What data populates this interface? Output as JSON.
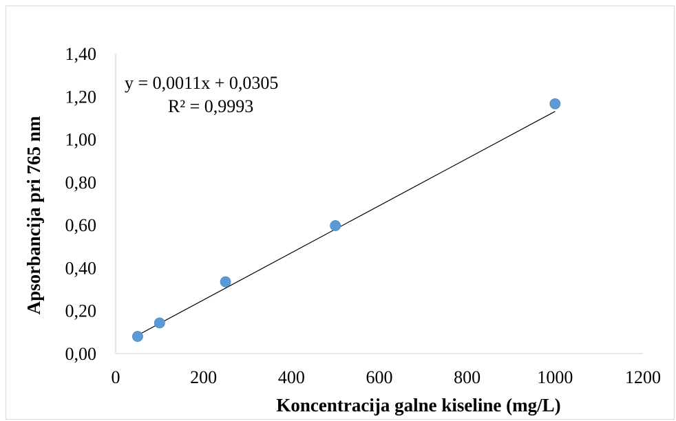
{
  "chart_data": {
    "type": "scatter",
    "title": "",
    "xlabel": "Koncentracija galne kiseline (mg/L)",
    "ylabel": "Apsorbancija pri 765 nm",
    "xlim": [
      0,
      1200
    ],
    "ylim": [
      0,
      1.4
    ],
    "x_ticks": [
      0,
      200,
      400,
      600,
      800,
      1000,
      1200
    ],
    "x_tick_labels": [
      "0",
      "200",
      "400",
      "600",
      "800",
      "1000",
      "1200"
    ],
    "y_ticks": [
      0,
      0.2,
      0.4,
      0.6,
      0.8,
      1.0,
      1.2,
      1.4
    ],
    "y_tick_labels": [
      "0,00",
      "0,20",
      "0,40",
      "0,60",
      "0,80",
      "1,00",
      "1,20",
      "1,40"
    ],
    "grid": false,
    "legend": "none",
    "series": [
      {
        "x": [
          50,
          100,
          250,
          500,
          1000
        ],
        "y": [
          0.08,
          0.143,
          0.335,
          0.597,
          1.166
        ],
        "color": "#5b9bd5"
      }
    ],
    "trendline": {
      "type": "linear",
      "slope": 0.0011,
      "intercept": 0.0305,
      "x_range": [
        50,
        1000
      ],
      "color": "#000000",
      "equation_label": "y = 0,0011x + 0,0305",
      "r2_label": "R² = 0,9993"
    }
  }
}
